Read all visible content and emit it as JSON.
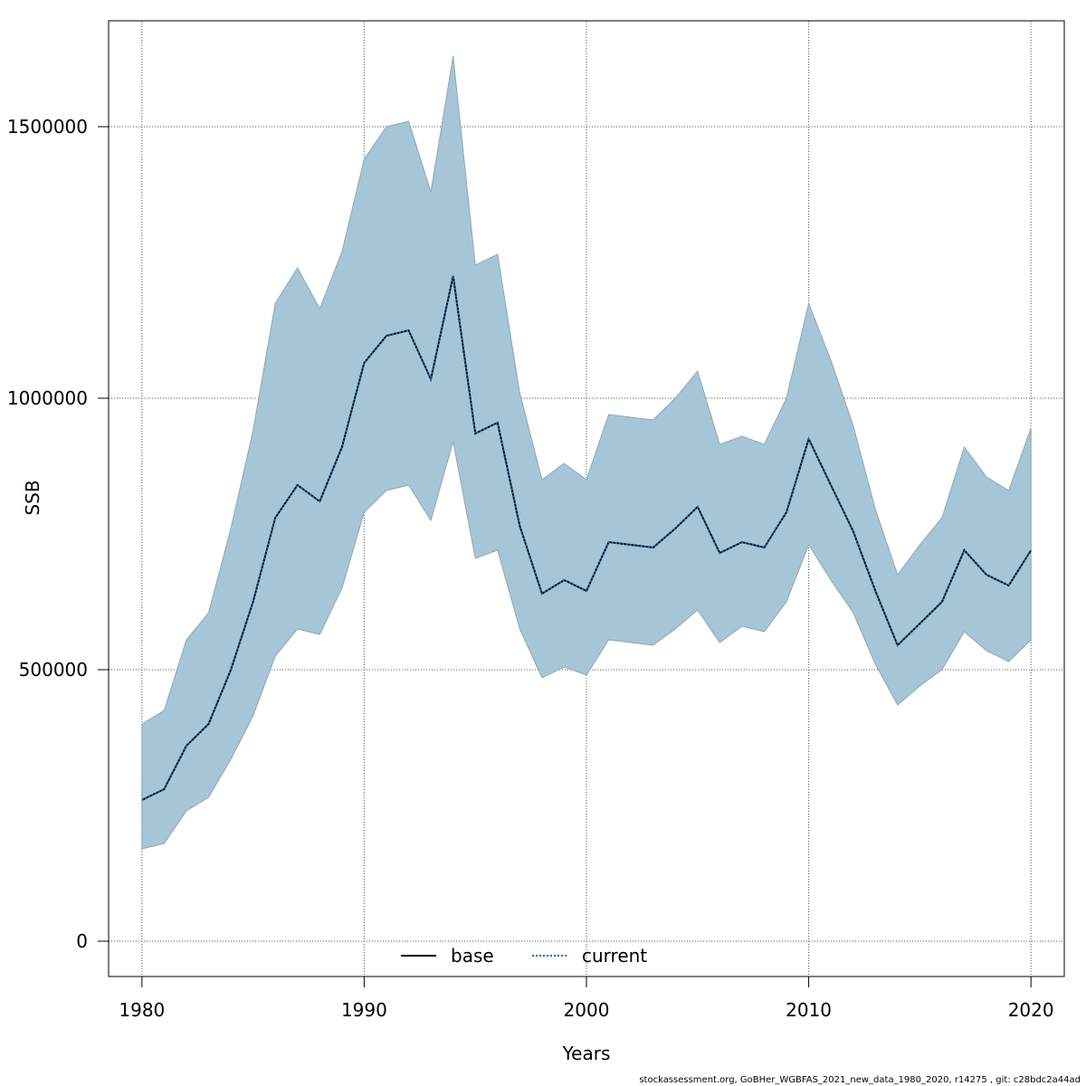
{
  "chart_data": {
    "type": "line",
    "xlabel": "Years",
    "ylabel": "SSB",
    "xlim": [
      1978.5,
      2021.5
    ],
    "ylim": [
      -65000,
      1695000
    ],
    "x_ticks": [
      1980,
      1990,
      2000,
      2010,
      2020
    ],
    "y_ticks": [
      0,
      500000,
      1000000,
      1500000
    ],
    "y_tick_labels": [
      "0",
      "500000",
      "1000000",
      "1500000"
    ],
    "grid": true,
    "legend_position": "bottom",
    "x": [
      1980,
      1981,
      1982,
      1983,
      1984,
      1985,
      1986,
      1987,
      1988,
      1989,
      1990,
      1991,
      1992,
      1993,
      1994,
      1995,
      1996,
      1997,
      1998,
      1999,
      2000,
      2001,
      2002,
      2003,
      2004,
      2005,
      2006,
      2007,
      2008,
      2009,
      2010,
      2011,
      2012,
      2013,
      2014,
      2015,
      2016,
      2017,
      2018,
      2019,
      2020
    ],
    "series": [
      {
        "name": "base",
        "line_style": "solid",
        "color": "#000000",
        "values": [
          260000,
          280000,
          360000,
          400000,
          500000,
          625000,
          780000,
          840000,
          810000,
          910000,
          1065000,
          1115000,
          1125000,
          1035000,
          1225000,
          935000,
          955000,
          765000,
          640000,
          665000,
          645000,
          735000,
          730000,
          725000,
          760000,
          800000,
          715000,
          735000,
          725000,
          790000,
          925000,
          840000,
          755000,
          645000,
          545000,
          585000,
          625000,
          720000,
          675000,
          655000,
          720000
        ]
      },
      {
        "name": "current",
        "line_style": "dotted",
        "color": "#1a6fa0",
        "values": [
          260000,
          280000,
          360000,
          400000,
          500000,
          625000,
          780000,
          840000,
          810000,
          910000,
          1065000,
          1115000,
          1125000,
          1035000,
          1225000,
          935000,
          955000,
          765000,
          640000,
          665000,
          645000,
          735000,
          730000,
          725000,
          760000,
          800000,
          715000,
          735000,
          725000,
          790000,
          925000,
          840000,
          755000,
          645000,
          545000,
          585000,
          625000,
          720000,
          675000,
          655000,
          720000
        ]
      }
    ],
    "confidence_band": {
      "color": "#a6c5d7",
      "lower": [
        170000,
        180000,
        240000,
        265000,
        335000,
        415000,
        525000,
        575000,
        565000,
        650000,
        790000,
        830000,
        840000,
        775000,
        920000,
        705000,
        720000,
        575000,
        485000,
        505000,
        490000,
        555000,
        550000,
        545000,
        575000,
        610000,
        550000,
        580000,
        570000,
        625000,
        730000,
        665000,
        605000,
        510000,
        435000,
        470000,
        500000,
        570000,
        535000,
        515000,
        555000
      ],
      "upper": [
        400000,
        425000,
        555000,
        605000,
        760000,
        940000,
        1175000,
        1240000,
        1165000,
        1270000,
        1440000,
        1500000,
        1510000,
        1380000,
        1630000,
        1245000,
        1265000,
        1010000,
        850000,
        880000,
        850000,
        970000,
        965000,
        960000,
        1000000,
        1050000,
        915000,
        930000,
        915000,
        1000000,
        1175000,
        1070000,
        950000,
        795000,
        675000,
        730000,
        780000,
        910000,
        855000,
        830000,
        945000
      ]
    }
  },
  "footer_text": "stockassessment.org, GoBHer_WGBFAS_2021_new_data_1980_2020, r14275 , git: c28bdc2a44ad"
}
